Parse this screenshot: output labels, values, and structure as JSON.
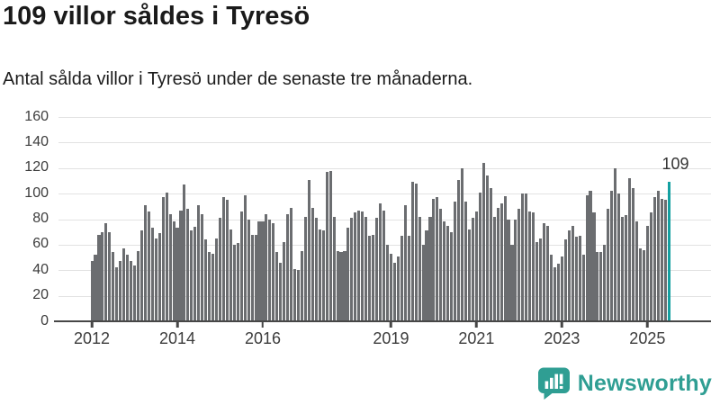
{
  "header": {
    "title": "109 villor såldes i Tyresö",
    "subtitle": "Antal sålda villor i Tyresö under de senaste tre månaderna."
  },
  "chart_data": {
    "type": "bar",
    "title": "109 villor såldes i Tyresö",
    "subtitle": "Antal sålda villor i Tyresö under de senaste tre månaderna.",
    "unit": "antal sålda villor (rullande tre månader)",
    "interval": "monthly",
    "start_month": "2012-01",
    "end_month": "2025-07",
    "ylim": [
      0,
      160
    ],
    "y_ticks": [
      0,
      20,
      40,
      60,
      80,
      100,
      120,
      140,
      160
    ],
    "x_ticks": [
      {
        "label": "2012",
        "month_index": 0
      },
      {
        "label": "2014",
        "month_index": 24
      },
      {
        "label": "2016",
        "month_index": 48
      },
      {
        "label": "2019",
        "month_index": 84
      },
      {
        "label": "2021",
        "month_index": 108
      },
      {
        "label": "2023",
        "month_index": 132
      },
      {
        "label": "2025",
        "month_index": 156
      }
    ],
    "values": [
      47,
      52,
      68,
      70,
      77,
      70,
      54,
      42,
      47,
      57,
      52,
      47,
      44,
      55,
      71,
      91,
      86,
      73,
      65,
      69,
      97,
      101,
      84,
      78,
      73,
      87,
      107,
      88,
      71,
      74,
      91,
      84,
      64,
      54,
      53,
      65,
      81,
      97,
      95,
      72,
      60,
      61,
      86,
      99,
      80,
      68,
      68,
      78,
      78,
      84,
      80,
      77,
      54,
      46,
      62,
      84,
      89,
      41,
      40,
      55,
      82,
      111,
      89,
      81,
      72,
      71,
      117,
      118,
      82,
      55,
      54,
      55,
      73,
      81,
      85,
      87,
      86,
      82,
      67,
      68,
      81,
      92,
      87,
      60,
      53,
      46,
      51,
      67,
      91,
      67,
      109,
      108,
      82,
      60,
      71,
      82,
      96,
      97,
      88,
      78,
      75,
      70,
      94,
      111,
      120,
      94,
      72,
      81,
      86,
      101,
      124,
      114,
      104,
      82,
      89,
      92,
      98,
      80,
      60,
      80,
      88,
      100,
      100,
      86,
      85,
      62,
      65,
      77,
      75,
      52,
      42,
      45,
      51,
      64,
      71,
      75,
      66,
      67,
      52,
      99,
      102,
      85,
      54,
      54,
      60,
      88,
      102,
      120,
      100,
      82,
      83,
      112,
      104,
      78,
      57,
      56,
      75,
      85,
      97,
      102,
      96,
      95,
      109
    ],
    "highlight_last": true,
    "highlight_value": 109,
    "annotation_label": "109",
    "bar_color": "#6b6d70",
    "highlight_color": "#14a0a1",
    "grid_color": "#e2e2e2",
    "axis_color": "#474747",
    "legend": "none",
    "grid": true
  },
  "footer": {
    "brand": "Newsworthy",
    "brand_color": "#2f9e93",
    "logo_icon": "bar-chart-speech-bubble-icon"
  }
}
